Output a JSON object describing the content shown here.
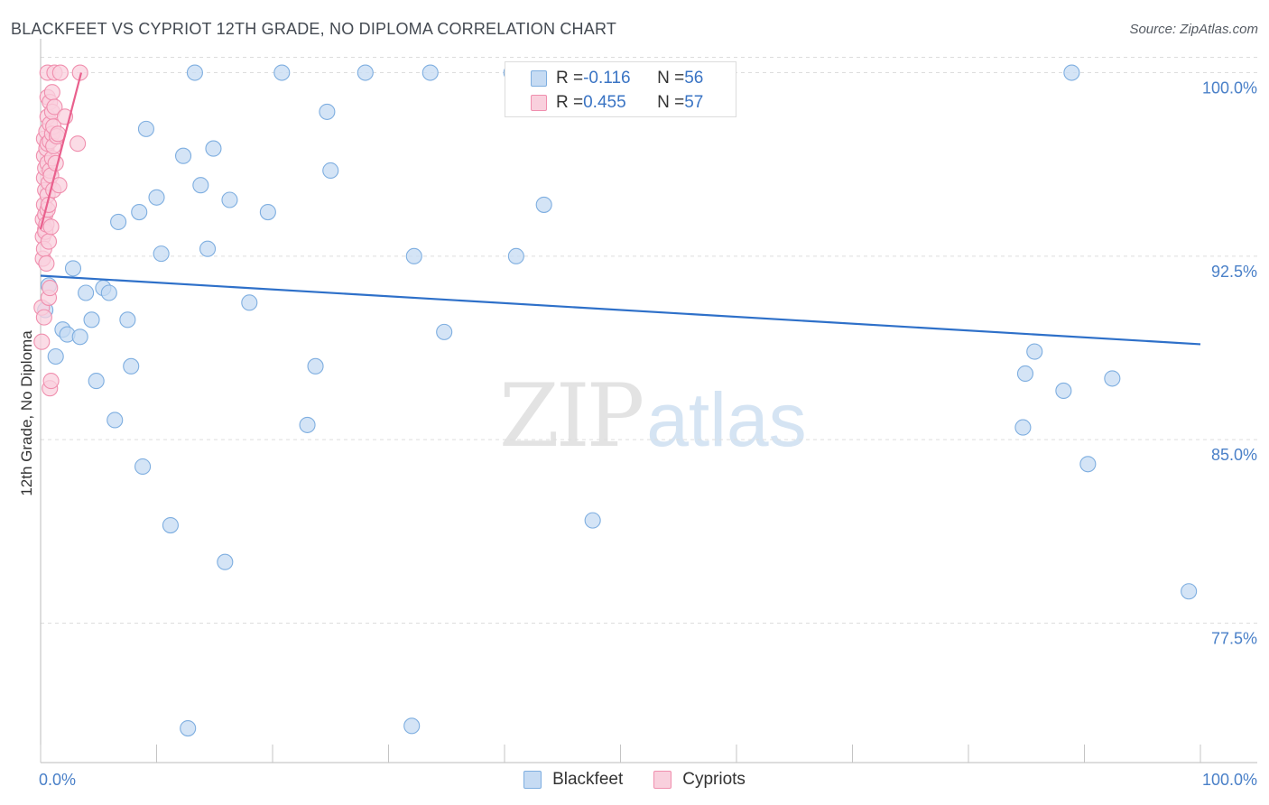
{
  "title": "BLACKFEET VS CYPRIOT 12TH GRADE, NO DIPLOMA CORRELATION CHART",
  "source": "Source: ZipAtlas.com",
  "watermark": {
    "zip": "ZIP",
    "atlas": "atlas"
  },
  "legend_top": {
    "rows": [
      {
        "r_label": "R = ",
        "r_value": "-0.116",
        "n_label": "N = ",
        "n_value": "56",
        "color": "#9fc3ea"
      },
      {
        "r_label": "R = ",
        "r_value": "0.455",
        "n_label": "N = ",
        "n_value": "57",
        "color": "#f4afc4"
      }
    ]
  },
  "colors": {
    "blackfeet_fill": "#c6dbf3",
    "blackfeet_stroke": "#7eaee0",
    "blackfeet_line": "#2e70c9",
    "cypriots_fill": "#f9d0dd",
    "cypriots_stroke": "#f08fae",
    "cypriots_line": "#e9608d",
    "tick_label": "#4a80c8",
    "grid": "#dddddd"
  },
  "chart_data": {
    "type": "scatter",
    "title": "BLACKFEET VS CYPRIOT 12TH GRADE, NO DIPLOMA CORRELATION CHART",
    "xlabel": "",
    "ylabel": "12th Grade, No Diploma",
    "xlim": [
      0,
      100
    ],
    "ylim": [
      71.8,
      101.2
    ],
    "x_tick_labels": [
      "0.0%",
      "100.0%"
    ],
    "y_ticks": [
      {
        "value": 100.0,
        "label": "100.0%"
      },
      {
        "value": 92.5,
        "label": "92.5%"
      },
      {
        "value": 85.0,
        "label": "85.0%"
      },
      {
        "value": 77.5,
        "label": "77.5%"
      }
    ],
    "grid": "horizontal dashed",
    "legend": "bottom-center",
    "series": [
      {
        "name": "Blackfeet",
        "stats": {
          "R": -0.116,
          "N": 56
        },
        "trend": {
          "x": [
            0,
            100
          ],
          "y": [
            91.7,
            88.9
          ]
        },
        "points": [
          [
            0.4,
            90.3
          ],
          [
            0.7,
            91.3
          ],
          [
            1.3,
            88.4
          ],
          [
            1.9,
            89.5
          ],
          [
            2.3,
            89.3
          ],
          [
            2.8,
            92.0
          ],
          [
            3.4,
            89.2
          ],
          [
            3.9,
            91.0
          ],
          [
            4.4,
            89.9
          ],
          [
            4.8,
            87.4
          ],
          [
            5.4,
            91.2
          ],
          [
            5.9,
            91.0
          ],
          [
            6.4,
            85.8
          ],
          [
            6.7,
            93.9
          ],
          [
            7.5,
            89.9
          ],
          [
            7.8,
            88.0
          ],
          [
            8.5,
            94.3
          ],
          [
            8.8,
            83.9
          ],
          [
            9.1,
            97.7
          ],
          [
            10.0,
            94.9
          ],
          [
            10.4,
            92.6
          ],
          [
            11.2,
            81.5
          ],
          [
            12.3,
            96.6
          ],
          [
            12.7,
            73.2
          ],
          [
            13.3,
            100.0
          ],
          [
            13.8,
            95.4
          ],
          [
            14.4,
            92.8
          ],
          [
            14.9,
            96.9
          ],
          [
            15.9,
            80.0
          ],
          [
            16.3,
            94.8
          ],
          [
            18.0,
            90.6
          ],
          [
            19.6,
            94.3
          ],
          [
            20.8,
            100.0
          ],
          [
            23.0,
            85.6
          ],
          [
            23.7,
            88.0
          ],
          [
            24.7,
            98.4
          ],
          [
            25.0,
            96.0
          ],
          [
            28.0,
            100.0
          ],
          [
            32.0,
            73.3
          ],
          [
            32.2,
            92.5
          ],
          [
            33.6,
            100.0
          ],
          [
            34.8,
            89.4
          ],
          [
            40.6,
            100.0
          ],
          [
            41.0,
            92.5
          ],
          [
            43.4,
            94.6
          ],
          [
            47.2,
            100.0
          ],
          [
            47.6,
            81.7
          ],
          [
            50.0,
            100.0
          ],
          [
            84.7,
            85.5
          ],
          [
            84.9,
            87.7
          ],
          [
            85.7,
            88.6
          ],
          [
            88.2,
            87.0
          ],
          [
            88.9,
            100.0
          ],
          [
            90.3,
            84.0
          ],
          [
            92.4,
            87.5
          ],
          [
            99.0,
            78.8
          ]
        ]
      },
      {
        "name": "Cypriots",
        "stats": {
          "R": 0.455,
          "N": 57
        },
        "trend": {
          "x": [
            0.0,
            3.5
          ],
          "y": [
            93.6,
            100.0
          ]
        },
        "points": [
          [
            0.1,
            90.4
          ],
          [
            0.1,
            89.0
          ],
          [
            0.2,
            92.4
          ],
          [
            0.2,
            93.3
          ],
          [
            0.2,
            94.0
          ],
          [
            0.3,
            94.6
          ],
          [
            0.3,
            95.7
          ],
          [
            0.3,
            96.6
          ],
          [
            0.3,
            97.3
          ],
          [
            0.3,
            90.0
          ],
          [
            0.3,
            92.8
          ],
          [
            0.4,
            93.6
          ],
          [
            0.4,
            93.5
          ],
          [
            0.4,
            94.2
          ],
          [
            0.4,
            95.2
          ],
          [
            0.4,
            96.1
          ],
          [
            0.5,
            96.9
          ],
          [
            0.5,
            97.6
          ],
          [
            0.5,
            92.2
          ],
          [
            0.5,
            93.8
          ],
          [
            0.6,
            94.4
          ],
          [
            0.6,
            95.0
          ],
          [
            0.6,
            96.3
          ],
          [
            0.6,
            97.1
          ],
          [
            0.6,
            98.2
          ],
          [
            0.6,
            99.0
          ],
          [
            0.6,
            100.0
          ],
          [
            0.7,
            90.8
          ],
          [
            0.7,
            93.1
          ],
          [
            0.7,
            94.6
          ],
          [
            0.7,
            95.5
          ],
          [
            0.8,
            96.0
          ],
          [
            0.8,
            97.2
          ],
          [
            0.8,
            97.9
          ],
          [
            0.8,
            98.8
          ],
          [
            0.8,
            91.2
          ],
          [
            0.8,
            87.1
          ],
          [
            0.9,
            87.4
          ],
          [
            0.9,
            93.7
          ],
          [
            0.9,
            95.8
          ],
          [
            1.0,
            96.5
          ],
          [
            1.0,
            97.5
          ],
          [
            1.0,
            98.4
          ],
          [
            1.0,
            99.2
          ],
          [
            1.1,
            95.2
          ],
          [
            1.1,
            97.0
          ],
          [
            1.1,
            97.8
          ],
          [
            1.2,
            98.6
          ],
          [
            1.2,
            100.0
          ],
          [
            1.3,
            96.3
          ],
          [
            1.4,
            97.4
          ],
          [
            1.5,
            97.5
          ],
          [
            1.6,
            95.4
          ],
          [
            1.7,
            100.0
          ],
          [
            2.1,
            98.2
          ],
          [
            3.2,
            97.1
          ],
          [
            3.4,
            100.0
          ]
        ]
      }
    ]
  }
}
